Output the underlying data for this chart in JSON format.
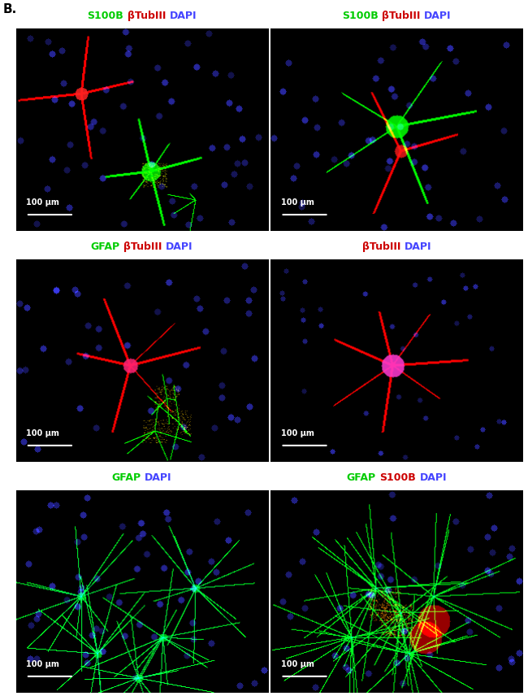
{
  "panel_label": "B.",
  "panel_label_color": "#000000",
  "border_color": "#d0d0d0",
  "background_color": "#000000",
  "title_box_bg": "#000000",
  "title_box_border": "#c0c0c0",
  "titles": [
    [
      {
        "text": "S100B",
        "color": "#00cc00"
      },
      {
        "text": "/",
        "color": "#ffffff"
      },
      {
        "text": "βTubIII",
        "color": "#cc0000"
      },
      {
        "text": "/",
        "color": "#ffffff"
      },
      {
        "text": "DAPI",
        "color": "#4444ff"
      }
    ],
    [
      {
        "text": "S100B",
        "color": "#00cc00"
      },
      {
        "text": "/",
        "color": "#ffffff"
      },
      {
        "text": "βTubIII",
        "color": "#cc0000"
      },
      {
        "text": "/",
        "color": "#ffffff"
      },
      {
        "text": "DAPI",
        "color": "#4444ff"
      }
    ],
    [
      {
        "text": "GFAP",
        "color": "#00cc00"
      },
      {
        "text": "/",
        "color": "#ffffff"
      },
      {
        "text": "βTubIII",
        "color": "#cc0000"
      },
      {
        "text": "/",
        "color": "#ffffff"
      },
      {
        "text": "DAPI",
        "color": "#4444ff"
      }
    ],
    [
      {
        "text": "βTubIII",
        "color": "#cc0000"
      },
      {
        "text": "/",
        "color": "#ffffff"
      },
      {
        "text": "DAPI",
        "color": "#4444ff"
      }
    ],
    [
      {
        "text": "GFAP",
        "color": "#00cc00"
      },
      {
        "text": "/",
        "color": "#ffffff"
      },
      {
        "text": "DAPI",
        "color": "#4444ff"
      }
    ],
    [
      {
        "text": "GFAP",
        "color": "#00cc00"
      },
      {
        "text": "/",
        "color": "#ffffff"
      },
      {
        "text": "S100B",
        "color": "#cc0000"
      },
      {
        "text": "/",
        "color": "#ffffff"
      },
      {
        "text": "DAPI",
        "color": "#4444ff"
      }
    ]
  ],
  "scale_bar_text": "100 μm",
  "scale_bar_color": "#ffffff",
  "title_fontsize": 9,
  "scale_fontsize": 7,
  "fig_width": 6.5,
  "fig_height": 8.56,
  "dpi": 100,
  "outer_border_color": "#aaaaaa",
  "title_bg": "#000000"
}
